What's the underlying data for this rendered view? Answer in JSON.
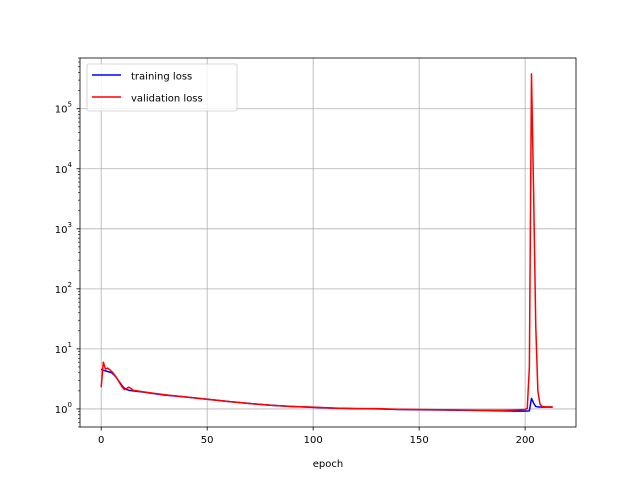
{
  "chart_data": {
    "type": "line",
    "title": "",
    "xlabel": "epoch",
    "ylabel": "",
    "xlim": [
      -10,
      224
    ],
    "ylim": [
      0.5,
      700000
    ],
    "yscale": "log",
    "grid": true,
    "legend": "top-left",
    "x_ticks": [
      {
        "value": 0,
        "label": "0"
      },
      {
        "value": 50,
        "label": "50"
      },
      {
        "value": 100,
        "label": "100"
      },
      {
        "value": 150,
        "label": "150"
      },
      {
        "value": 200,
        "label": "200"
      }
    ],
    "y_ticks": [
      {
        "value": 1,
        "base": "10",
        "exp": "0"
      },
      {
        "value": 10,
        "base": "10",
        "exp": "1"
      },
      {
        "value": 100,
        "base": "10",
        "exp": "2"
      },
      {
        "value": 1000,
        "base": "10",
        "exp": "3"
      },
      {
        "value": 10000,
        "base": "10",
        "exp": "4"
      },
      {
        "value": 100000,
        "base": "10",
        "exp": "5"
      }
    ],
    "series": [
      {
        "name": "training loss",
        "color": "#0000ff",
        "points": [
          [
            0,
            4.6
          ],
          [
            1,
            4.4
          ],
          [
            2,
            4.3
          ],
          [
            3,
            4.2
          ],
          [
            4,
            4.1
          ],
          [
            5,
            4.0
          ],
          [
            6,
            3.7
          ],
          [
            7,
            3.4
          ],
          [
            8,
            3.0
          ],
          [
            9,
            2.7
          ],
          [
            10,
            2.4
          ],
          [
            11,
            2.2
          ],
          [
            12,
            2.1
          ],
          [
            13,
            2.05
          ],
          [
            15,
            2.0
          ],
          [
            20,
            1.9
          ],
          [
            25,
            1.8
          ],
          [
            30,
            1.7
          ],
          [
            40,
            1.58
          ],
          [
            50,
            1.45
          ],
          [
            60,
            1.33
          ],
          [
            70,
            1.23
          ],
          [
            80,
            1.15
          ],
          [
            90,
            1.1
          ],
          [
            100,
            1.06
          ],
          [
            110,
            1.03
          ],
          [
            120,
            1.01
          ],
          [
            130,
            1.0
          ],
          [
            140,
            0.98
          ],
          [
            150,
            0.97
          ],
          [
            160,
            0.96
          ],
          [
            170,
            0.95
          ],
          [
            180,
            0.94
          ],
          [
            190,
            0.93
          ],
          [
            195,
            0.92
          ],
          [
            200,
            0.92
          ],
          [
            202,
            0.93
          ],
          [
            203,
            1.5
          ],
          [
            204,
            1.25
          ],
          [
            205,
            1.1
          ],
          [
            206,
            1.08
          ],
          [
            208,
            1.07
          ],
          [
            210,
            1.07
          ],
          [
            213,
            1.07
          ]
        ]
      },
      {
        "name": "validation loss",
        "color": "#ff0000",
        "points": [
          [
            0,
            2.3
          ],
          [
            1,
            6.0
          ],
          [
            2,
            4.6
          ],
          [
            3,
            4.8
          ],
          [
            4,
            4.5
          ],
          [
            5,
            4.2
          ],
          [
            6,
            3.8
          ],
          [
            7,
            3.4
          ],
          [
            8,
            3.0
          ],
          [
            9,
            2.6
          ],
          [
            10,
            2.3
          ],
          [
            11,
            2.1
          ],
          [
            12,
            2.2
          ],
          [
            13,
            2.3
          ],
          [
            14,
            2.2
          ],
          [
            15,
            2.05
          ],
          [
            20,
            1.92
          ],
          [
            25,
            1.82
          ],
          [
            30,
            1.72
          ],
          [
            40,
            1.58
          ],
          [
            50,
            1.45
          ],
          [
            60,
            1.33
          ],
          [
            70,
            1.23
          ],
          [
            80,
            1.15
          ],
          [
            90,
            1.1
          ],
          [
            100,
            1.07
          ],
          [
            110,
            1.03
          ],
          [
            120,
            1.01
          ],
          [
            130,
            1.01
          ],
          [
            140,
            0.99
          ],
          [
            150,
            0.98
          ],
          [
            160,
            0.97
          ],
          [
            170,
            0.96
          ],
          [
            180,
            0.95
          ],
          [
            190,
            0.95
          ],
          [
            195,
            0.96
          ],
          [
            198,
            0.97
          ],
          [
            200,
            0.98
          ],
          [
            201,
            1.02
          ],
          [
            202,
            5.0
          ],
          [
            203,
            380000
          ],
          [
            204,
            4000
          ],
          [
            205,
            25
          ],
          [
            206,
            2.0
          ],
          [
            207,
            1.2
          ],
          [
            208,
            1.1
          ],
          [
            210,
            1.08
          ],
          [
            213,
            1.08
          ]
        ]
      }
    ]
  }
}
